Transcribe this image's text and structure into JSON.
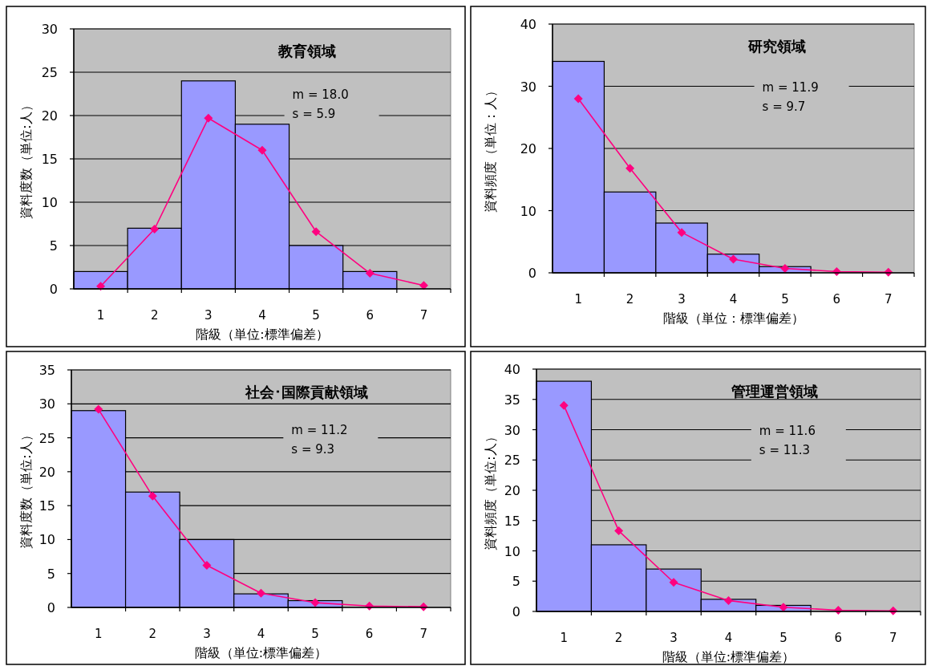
{
  "chart_data": [
    {
      "type": "bar",
      "title": "教育領域",
      "xlabel": "階級（単位:標準偏差）",
      "ylabel": "資料度数（単位:人）",
      "categories": [
        "1",
        "2",
        "3",
        "4",
        "5",
        "6",
        "7"
      ],
      "series": [
        {
          "type": "bar",
          "color": "#9999ff",
          "values": [
            2,
            7,
            24,
            19,
            5,
            2,
            0
          ]
        },
        {
          "type": "line",
          "color": "#ff0080",
          "values": [
            0.3,
            6.9,
            19.7,
            16,
            6.6,
            1.8,
            0.4
          ]
        }
      ],
      "ylim": [
        0,
        30
      ],
      "yticks": [
        0,
        5,
        10,
        15,
        20,
        25,
        30
      ],
      "grid": "y",
      "marker": "diamond",
      "annotations": [
        "m = 18.0",
        "s = 5.9"
      ]
    },
    {
      "type": "bar",
      "title": "研究領域",
      "xlabel": "階級（単位：標準偏差）",
      "ylabel": "資料頻度（単位：人）",
      "categories": [
        "1",
        "2",
        "3",
        "4",
        "5",
        "6",
        "7"
      ],
      "series": [
        {
          "type": "bar",
          "color": "#9999ff",
          "values": [
            34,
            13,
            8,
            3,
            1,
            0,
            0
          ]
        },
        {
          "type": "line",
          "color": "#ff0080",
          "values": [
            28,
            16.8,
            6.5,
            2.2,
            0.7,
            0.2,
            0.1
          ]
        }
      ],
      "ylim": [
        0,
        40
      ],
      "yticks": [
        0,
        10,
        20,
        30,
        40
      ],
      "grid": "y",
      "marker": "diamond",
      "annotations": [
        "m = 11.9",
        "s = 9.7"
      ]
    },
    {
      "type": "bar",
      "title": "社会･国際貢献領域",
      "xlabel": "階級（単位:標準偏差）",
      "ylabel": "資料度数（単位:人）",
      "categories": [
        "1",
        "2",
        "3",
        "4",
        "5",
        "6",
        "7"
      ],
      "series": [
        {
          "type": "bar",
          "color": "#9999ff",
          "values": [
            29,
            17,
            10,
            2,
            1,
            0,
            0
          ]
        },
        {
          "type": "line",
          "color": "#ff0080",
          "values": [
            29.2,
            16.4,
            6.2,
            2.1,
            0.7,
            0.2,
            0.1
          ]
        }
      ],
      "ylim": [
        0,
        35
      ],
      "yticks": [
        0,
        5,
        10,
        15,
        20,
        25,
        30,
        35
      ],
      "grid": "y",
      "marker": "diamond",
      "annotations": [
        "m = 11.2",
        "s =  9.3"
      ]
    },
    {
      "type": "bar",
      "title": "管理運営領域",
      "xlabel": "階級（単位:標準偏差）",
      "ylabel": "資料頻度（単位:人）",
      "categories": [
        "1",
        "2",
        "3",
        "4",
        "5",
        "6",
        "7"
      ],
      "series": [
        {
          "type": "bar",
          "color": "#9999ff",
          "values": [
            38,
            11,
            7,
            2,
            1,
            0,
            0
          ]
        },
        {
          "type": "line",
          "color": "#ff0080",
          "values": [
            34,
            13.3,
            4.8,
            1.8,
            0.7,
            0.2,
            0.1
          ]
        }
      ],
      "ylim": [
        0,
        40
      ],
      "yticks": [
        0,
        5,
        10,
        15,
        20,
        25,
        30,
        35,
        40
      ],
      "grid": "y",
      "marker": "diamond",
      "annotations": [
        "m = 11.6",
        "s = 11.3"
      ]
    }
  ]
}
